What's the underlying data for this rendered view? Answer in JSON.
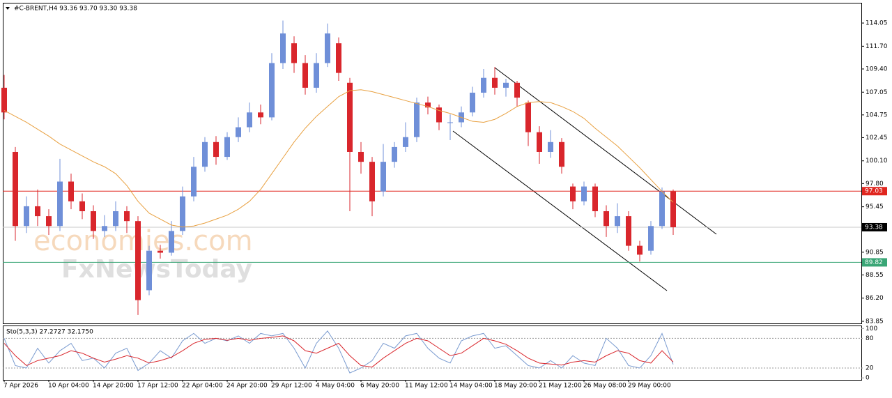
{
  "chart_data": {
    "type": "candlestick",
    "title": "#C-BRENT,H4  93.36 93.70 93.30 93.38",
    "categories": [
      "7 Apr 2026",
      null,
      null,
      null,
      "10 Apr 04:00",
      null,
      null,
      null,
      "14 Apr 20:00",
      null,
      null,
      null,
      "17 Apr 12:00",
      null,
      null,
      null,
      "22 Apr 04:00",
      null,
      null,
      null,
      "24 Apr 20:00",
      null,
      null,
      null,
      "29 Apr 12:00",
      null,
      null,
      null,
      "4 May 04:00",
      null,
      null,
      null,
      "6 May 20:00",
      null,
      null,
      null,
      "11 May 12:00",
      null,
      null,
      null,
      "14 May 04:00",
      null,
      null,
      null,
      "18 May 20:00",
      null,
      null,
      null,
      "21 May 12:00",
      null,
      null,
      null,
      "26 May 08:00",
      null,
      null,
      null,
      "29 May 00:00",
      null,
      null,
      null,
      null
    ],
    "open": [
      107.5,
      101,
      93.5,
      95.5,
      94.5,
      93.5,
      98,
      96,
      95,
      93,
      93.5,
      95,
      94,
      87,
      91,
      90.8,
      93,
      96.5,
      99.5,
      102,
      100.5,
      102.5,
      103.5,
      105,
      104.5,
      110,
      112,
      110,
      107.5,
      110,
      112,
      108,
      101,
      100,
      97,
      100,
      101.5,
      102.5,
      106,
      105.5,
      104,
      104,
      105,
      107,
      108.5,
      107.5,
      108,
      106,
      103,
      101,
      102,
      97.5,
      96,
      97.5,
      95,
      93.5,
      94.5,
      91.5,
      91,
      93.5,
      97
    ],
    "high": [
      108.8,
      101.5,
      96.5,
      97.2,
      95.2,
      100.3,
      98.8,
      96.8,
      95.6,
      94.6,
      96,
      95.5,
      94.5,
      91.5,
      91.6,
      94,
      97.5,
      100.5,
      102.5,
      102.6,
      103,
      104.5,
      106,
      105.8,
      111,
      114.3,
      112.7,
      110.8,
      111,
      114,
      112.6,
      108.5,
      102,
      100.5,
      101.8,
      102,
      104,
      106.5,
      106.6,
      105.8,
      104.8,
      105.6,
      107.6,
      109.4,
      109.6,
      108.4,
      108.2,
      106.2,
      103.6,
      103.2,
      102.4,
      97.8,
      98,
      97.8,
      95.6,
      95.8,
      95,
      92,
      94,
      97.4,
      97.2
    ],
    "low": [
      104.3,
      92,
      92.8,
      93.5,
      92.6,
      93,
      95.2,
      94.2,
      92.2,
      92.4,
      93,
      92.8,
      84.5,
      86.5,
      90.2,
      90.5,
      92.6,
      96,
      99,
      99.7,
      100.2,
      102,
      103,
      103.8,
      104.2,
      109.4,
      109,
      106.8,
      107,
      109.6,
      108.2,
      95,
      98.8,
      94.5,
      96.5,
      99.4,
      101,
      102,
      104.8,
      103.2,
      102.2,
      103.5,
      104.6,
      106.5,
      106.8,
      106.6,
      105.6,
      101.6,
      99.8,
      100.4,
      98.8,
      95.2,
      95.6,
      94.4,
      92.4,
      92.8,
      91,
      89.9,
      90.6,
      93.2,
      92.6
    ],
    "close": [
      105,
      93.5,
      95.5,
      94.5,
      93.5,
      98,
      96,
      95,
      93,
      93.5,
      95,
      94,
      86,
      91,
      90.8,
      93,
      96.5,
      99.5,
      102,
      100.5,
      102.5,
      103.5,
      105,
      104.5,
      110,
      113,
      110,
      107.5,
      110,
      113,
      109,
      101,
      100,
      96,
      100,
      101.5,
      102.5,
      106,
      105.5,
      104,
      104,
      105,
      107,
      108.5,
      107.5,
      108,
      106.5,
      103,
      101,
      102,
      99.5,
      96,
      97.5,
      95,
      93.5,
      94.5,
      91.5,
      90.6,
      93.5,
      97,
      93.38
    ],
    "up_color": "#6f8fd8",
    "down_color": "#d9262c",
    "ylim": [
      83.64,
      116.1
    ],
    "yticks": [
      114.05,
      {
        "value": 111.7,
        "label": "111.70"
      },
      {
        "value": 109.4,
        "label": "109.40"
      },
      107.05,
      104.75,
      102.45,
      {
        "value": 100.1,
        "label": "100.10"
      },
      {
        "value": 97.8,
        "label": "97.80"
      },
      95.45,
      90.85,
      88.55,
      {
        "value": 86.2,
        "label": "86.20"
      },
      83.85
    ],
    "ma": {
      "color": "#e8a040",
      "values": [
        105.2,
        104.6,
        104,
        103.3,
        102.6,
        101.8,
        101.2,
        100.6,
        100,
        99.5,
        98.8,
        97.6,
        96,
        94.8,
        94.2,
        93.6,
        93.4,
        93.5,
        93.8,
        94.2,
        94.6,
        95.2,
        96,
        97.2,
        98.8,
        100.4,
        102,
        103.4,
        104.6,
        105.6,
        106.6,
        107.2,
        107.3,
        107.1,
        106.8,
        106.5,
        106.2,
        105.9,
        105.6,
        105.2,
        104.9,
        104.5,
        104.1,
        104,
        104.3,
        104.9,
        105.6,
        106,
        106.1,
        106,
        105.6,
        105.1,
        104.4,
        103.4,
        102.5,
        101.6,
        100.5,
        99.4,
        98.2,
        97,
        95.9
      ]
    },
    "levels": [
      {
        "value": 97.03,
        "color": "#e0261f"
      },
      {
        "value": 93.38,
        "color": "#c8c8c8",
        "label_color": "#000000"
      },
      {
        "value": 89.82,
        "color": "#3aa676"
      }
    ],
    "watermark": [
      "economies.com",
      "FxNewsToday"
    ],
    "indicator": {
      "type": "line",
      "title": "Sto(5,3,3) 27.2727 32.1750",
      "ylim": [
        -4,
        106
      ],
      "yticks": [
        0,
        20,
        80,
        100
      ],
      "series": [
        {
          "color": "#7a9bd0",
          "values": [
            80,
            25,
            20,
            60,
            30,
            55,
            70,
            35,
            40,
            20,
            50,
            60,
            15,
            30,
            55,
            40,
            75,
            90,
            70,
            80,
            75,
            85,
            70,
            90,
            85,
            90,
            60,
            20,
            70,
            95,
            60,
            10,
            20,
            35,
            70,
            60,
            85,
            90,
            60,
            40,
            30,
            75,
            85,
            90,
            60,
            65,
            45,
            25,
            20,
            35,
            20,
            45,
            30,
            25,
            80,
            60,
            25,
            20,
            45,
            90,
            27.2727
          ]
        },
        {
          "color": "#d9262c",
          "values": [
            70,
            45,
            25,
            35,
            40,
            45,
            55,
            50,
            40,
            32,
            38,
            45,
            40,
            30,
            35,
            42,
            55,
            70,
            78,
            80,
            76,
            80,
            76,
            80,
            82,
            85,
            75,
            55,
            50,
            60,
            70,
            45,
            25,
            22,
            40,
            55,
            70,
            80,
            75,
            60,
            45,
            50,
            65,
            80,
            75,
            68,
            55,
            40,
            30,
            28,
            26,
            32,
            35,
            32,
            45,
            55,
            50,
            35,
            30,
            55,
            32.175
          ]
        }
      ]
    }
  }
}
